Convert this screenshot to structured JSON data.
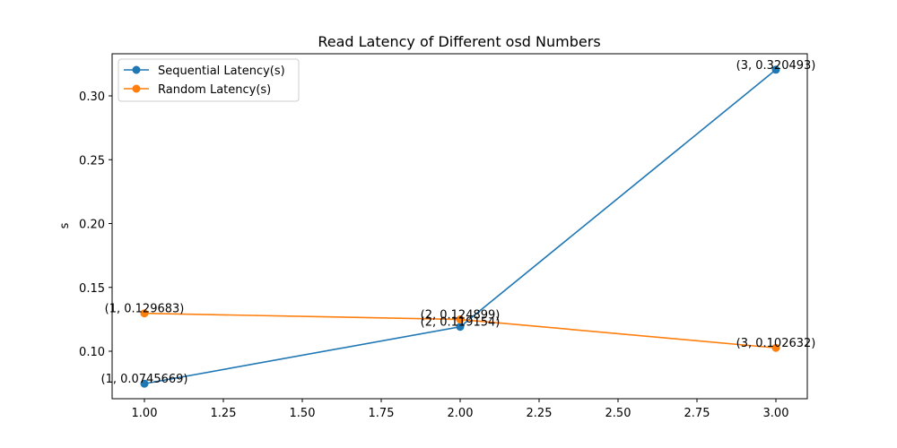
{
  "chart_data": {
    "type": "line",
    "title": "Read Latency of Different osd Numbers",
    "xlabel": "",
    "ylabel": "s",
    "x": [
      1,
      2,
      3
    ],
    "series": [
      {
        "name": "Sequential Latency(s)",
        "color": "#1f77b4",
        "values": [
          0.0745669,
          0.119154,
          0.320493
        ],
        "annotations": [
          "(1, 0.0745669)",
          "(2, 0.119154)",
          "(3, 0.320493)"
        ]
      },
      {
        "name": "Random Latency(s)",
        "color": "#ff7f0e",
        "values": [
          0.129683,
          0.124899,
          0.102632
        ],
        "annotations": [
          "(1, 0.129683)",
          "(2, 0.124899)",
          "(3, 0.102632)"
        ]
      }
    ],
    "xticks": [
      "1.00",
      "1.25",
      "1.50",
      "1.75",
      "2.00",
      "2.25",
      "2.50",
      "2.75",
      "3.00"
    ],
    "yticks": [
      "0.10",
      "0.15",
      "0.20",
      "0.25",
      "0.30"
    ],
    "xlim": [
      0.9,
      3.1
    ],
    "ylim": [
      0.063,
      0.331
    ],
    "grid": false,
    "legend_position": "upper left"
  }
}
